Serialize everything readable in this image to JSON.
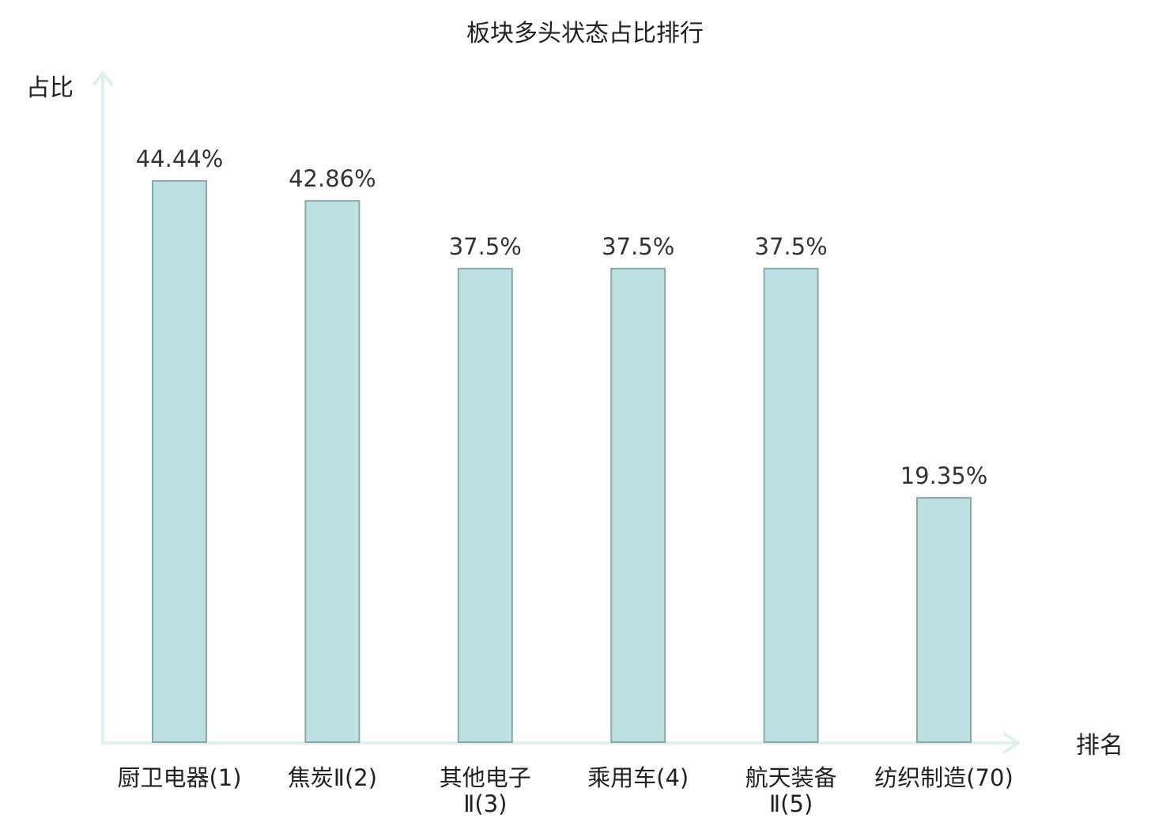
{
  "chart_data": {
    "type": "bar",
    "title": "板块多头状态占比排行",
    "ylabel": "占比",
    "xlabel": "排名",
    "categories": [
      [
        "厨卫电器(1)"
      ],
      [
        "焦炭Ⅱ(2)"
      ],
      [
        "其他电子",
        "Ⅱ(3)"
      ],
      [
        "乘用车(4)"
      ],
      [
        "航天装备",
        "Ⅱ(5)"
      ],
      [
        "纺织制造(70)"
      ]
    ],
    "values": [
      44.44,
      42.86,
      37.5,
      37.5,
      37.5,
      19.35
    ],
    "value_labels": [
      "44.44%",
      "42.86%",
      "37.5%",
      "37.5%",
      "37.5%",
      "19.35%"
    ],
    "highlight_index": 5,
    "ylim": [
      0,
      48
    ],
    "grid": false,
    "colors": {
      "bar_fill": "#bde0e3",
      "bar_stroke": "#8aa8a8",
      "axis": "#dff0ee",
      "text": "#222222",
      "value_text": "#333333",
      "highlight_text": "#e02020"
    }
  }
}
